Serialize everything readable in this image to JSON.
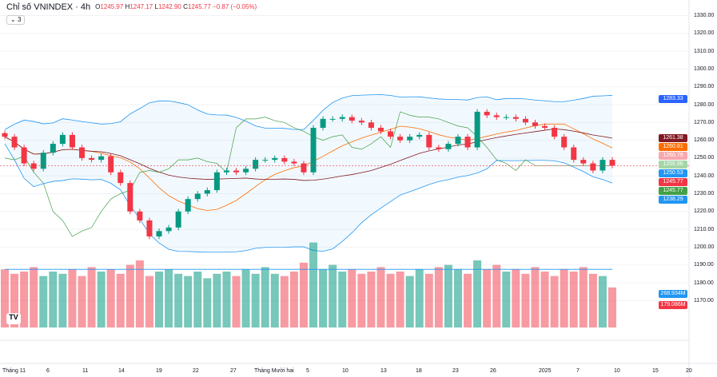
{
  "header": {
    "title": "Chỉ số VNINDEX · 4h",
    "open_label": "O",
    "open": "1245.97",
    "high_label": "H",
    "high": "1247.17",
    "low_label": "L",
    "low": "1242.90",
    "close_label": "C",
    "close": "1245.77",
    "change": "−0.87 (−0.05%)",
    "indicators_toggle": "3"
  },
  "logo": "TV",
  "price_tags": [
    {
      "value": "1283.33",
      "color": "#2962ff",
      "price": 1283.33
    },
    {
      "value": "1261.38",
      "color": "#801922",
      "price": 1261.38
    },
    {
      "value": "1260.81",
      "color": "#ff6d00",
      "price": 1260.81
    },
    {
      "value": "1260.79",
      "color": "#f7a8ad",
      "price": 1260.79
    },
    {
      "value": "1255.96",
      "color": "#a5d6a7",
      "price": 1255.96
    },
    {
      "value": "1250.53",
      "color": "#2196f3",
      "price": 1250.53
    },
    {
      "value": "1245.77",
      "color": "#f23645",
      "price": 1245.77
    },
    {
      "value": "1245.77",
      "color": "#43a047",
      "price": 1245.77
    },
    {
      "value": "1238.29",
      "color": "#2196f3",
      "price": 1238.29
    }
  ],
  "volume_tags": [
    {
      "value": "268.934M",
      "color": "#2196f3"
    },
    {
      "value": "179.086M",
      "color": "#f23645"
    }
  ],
  "chart_data": {
    "type": "candlestick",
    "y_ticks": [
      1330,
      1320,
      1310,
      1300,
      1290,
      1280,
      1270,
      1260,
      1250,
      1240,
      1230,
      1220,
      1210,
      1200,
      1190,
      1180,
      1170
    ],
    "y_tick_labels": [
      "1330.00",
      "1320.00",
      "1310.00",
      "1300.00",
      "1290.00",
      "1280.00",
      "1270.00",
      "1260.00",
      "1250.00",
      "1240.00",
      "1230.00",
      "1220.00",
      "1210.00",
      "1200.00",
      "1190.00",
      "1180.00",
      "1170.00"
    ],
    "x_labels": [
      "Tháng 11",
      "6",
      "11",
      "14",
      "19",
      "22",
      "27",
      "Tháng Mười hai",
      "5",
      "10",
      "13",
      "18",
      "23",
      "26",
      "2025",
      "7",
      "10",
      "15",
      "20"
    ],
    "closes": [
      1262,
      1256,
      1247,
      1244,
      1253,
      1258,
      1263,
      1256,
      1250,
      1249,
      1251,
      1242,
      1236,
      1220,
      1215,
      1206,
      1209,
      1211,
      1220,
      1227,
      1230,
      1232,
      1242,
      1243,
      1242,
      1244,
      1249,
      1249,
      1250,
      1248,
      1247,
      1242,
      1267,
      1272,
      1272,
      1273,
      1271,
      1270,
      1267,
      1265,
      1262,
      1260,
      1262,
      1263,
      1256,
      1255,
      1258,
      1262,
      1256,
      1276,
      1274,
      1273,
      1273,
      1272,
      1270,
      1268,
      1267,
      1262,
      1256,
      1249,
      1247,
      1243,
      1249,
      1245.77
    ],
    "volumes": [
      260,
      240,
      250,
      270,
      230,
      250,
      240,
      260,
      230,
      270,
      250,
      260,
      240,
      280,
      300,
      230,
      250,
      260,
      240,
      230,
      250,
      220,
      240,
      250,
      230,
      260,
      240,
      270,
      240,
      230,
      250,
      290,
      380,
      260,
      280,
      250,
      260,
      240,
      250,
      270,
      240,
      250,
      230,
      260,
      240,
      270,
      280,
      260,
      240,
      300,
      260,
      280,
      250,
      260,
      240,
      270,
      250,
      230,
      260,
      250,
      270,
      240,
      230,
      179
    ]
  }
}
